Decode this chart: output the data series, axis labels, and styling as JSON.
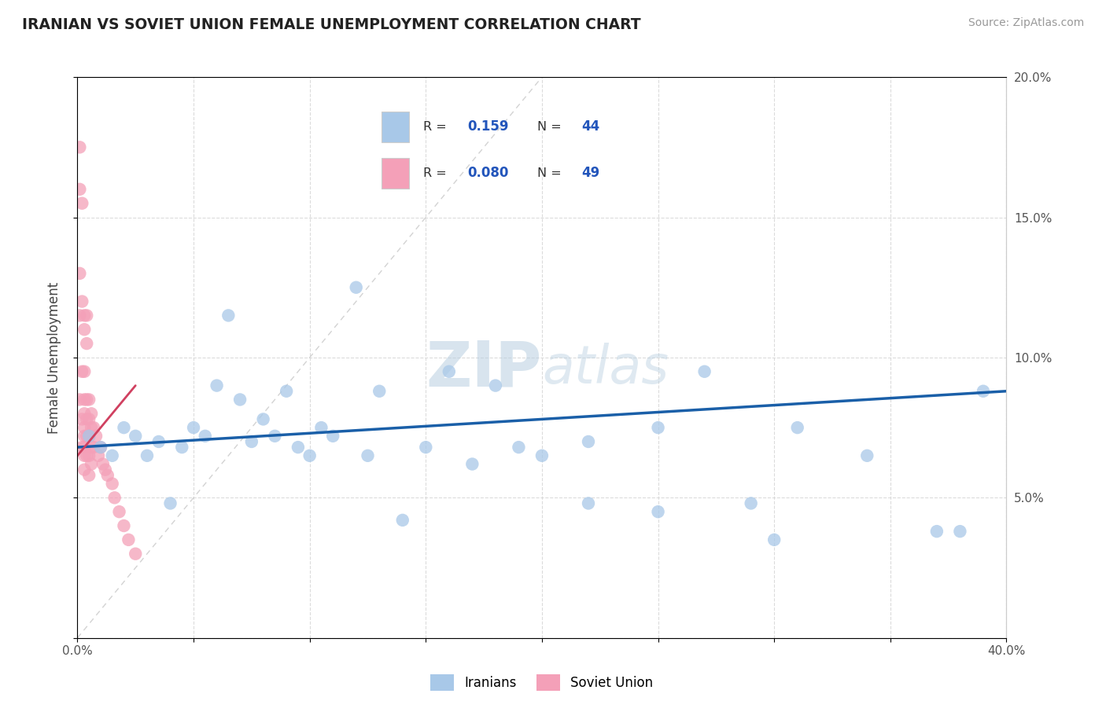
{
  "title": "IRANIAN VS SOVIET UNION FEMALE UNEMPLOYMENT CORRELATION CHART",
  "source": "Source: ZipAtlas.com",
  "ylabel": "Female Unemployment",
  "xlim": [
    0.0,
    0.4
  ],
  "ylim": [
    0.0,
    0.2
  ],
  "watermark": "ZIPatlas",
  "legend_r_iranians": "0.159",
  "legend_n_iranians": "44",
  "legend_r_soviet": "0.080",
  "legend_n_soviet": "49",
  "iranians_color": "#a8c8e8",
  "soviet_color": "#f4a0b8",
  "iranians_line_color": "#1a5fa8",
  "soviet_line_color": "#d04060",
  "diag_line_color": "#c8c8c8",
  "iranians_x": [
    0.005,
    0.01,
    0.015,
    0.02,
    0.025,
    0.03,
    0.035,
    0.04,
    0.045,
    0.05,
    0.055,
    0.06,
    0.065,
    0.07,
    0.075,
    0.08,
    0.085,
    0.09,
    0.095,
    0.1,
    0.105,
    0.11,
    0.12,
    0.125,
    0.13,
    0.14,
    0.15,
    0.16,
    0.17,
    0.18,
    0.19,
    0.2,
    0.22,
    0.25,
    0.27,
    0.29,
    0.31,
    0.34,
    0.37,
    0.39,
    0.22,
    0.25,
    0.3,
    0.38
  ],
  "iranians_y": [
    0.072,
    0.068,
    0.065,
    0.075,
    0.072,
    0.065,
    0.07,
    0.048,
    0.068,
    0.075,
    0.072,
    0.09,
    0.115,
    0.085,
    0.07,
    0.078,
    0.072,
    0.088,
    0.068,
    0.065,
    0.075,
    0.072,
    0.125,
    0.065,
    0.088,
    0.042,
    0.068,
    0.095,
    0.062,
    0.09,
    0.068,
    0.065,
    0.07,
    0.075,
    0.095,
    0.048,
    0.075,
    0.065,
    0.038,
    0.088,
    0.048,
    0.045,
    0.035,
    0.038
  ],
  "soviet_x": [
    0.001,
    0.001,
    0.001,
    0.001,
    0.001,
    0.002,
    0.002,
    0.002,
    0.002,
    0.002,
    0.003,
    0.003,
    0.003,
    0.003,
    0.003,
    0.003,
    0.003,
    0.003,
    0.003,
    0.003,
    0.004,
    0.004,
    0.004,
    0.004,
    0.004,
    0.004,
    0.005,
    0.005,
    0.005,
    0.005,
    0.005,
    0.006,
    0.006,
    0.006,
    0.006,
    0.007,
    0.007,
    0.008,
    0.009,
    0.01,
    0.011,
    0.012,
    0.013,
    0.015,
    0.016,
    0.018,
    0.02,
    0.022,
    0.025
  ],
  "soviet_y": [
    0.175,
    0.16,
    0.13,
    0.115,
    0.085,
    0.155,
    0.12,
    0.095,
    0.078,
    0.068,
    0.115,
    0.11,
    0.095,
    0.085,
    0.08,
    0.075,
    0.072,
    0.068,
    0.065,
    0.06,
    0.115,
    0.105,
    0.085,
    0.078,
    0.072,
    0.065,
    0.085,
    0.078,
    0.072,
    0.065,
    0.058,
    0.08,
    0.075,
    0.068,
    0.062,
    0.075,
    0.068,
    0.072,
    0.065,
    0.068,
    0.062,
    0.06,
    0.058,
    0.055,
    0.05,
    0.045,
    0.04,
    0.035,
    0.03
  ],
  "background_color": "#ffffff",
  "grid_color": "#d8d8d8"
}
